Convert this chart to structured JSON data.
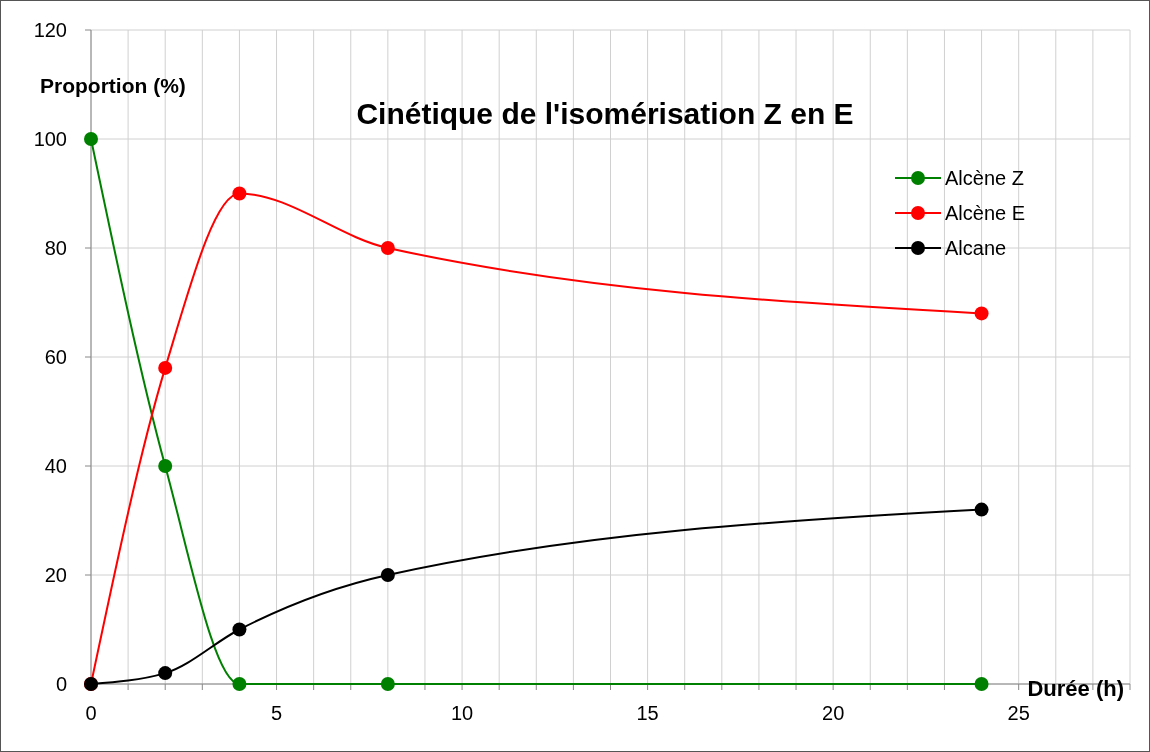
{
  "chart_data": {
    "type": "line",
    "title": "Cinétique de l'isomérisation Z en E",
    "xlabel": "Durée  (h)",
    "ylabel": "Proportion (%)",
    "x": [
      0,
      2,
      4,
      8,
      24
    ],
    "series": [
      {
        "name": "Alcène Z",
        "color": "#008000",
        "values": [
          100,
          40,
          0,
          0,
          0
        ]
      },
      {
        "name": "Alcène E",
        "color": "#ff0000",
        "values": [
          0,
          58,
          90,
          80,
          68
        ]
      },
      {
        "name": "Alcane",
        "color": "#000000",
        "values": [
          0,
          2,
          10,
          20,
          32
        ]
      }
    ],
    "xlim": [
      0,
      28
    ],
    "xticks": [
      0,
      {
        "value": 1,
        "label": null
      },
      {
        "value": 2,
        "label": null
      },
      {
        "value": 3,
        "label": null
      },
      {
        "value": 4,
        "label": null
      },
      5,
      {
        "value": 6,
        "label": null
      },
      {
        "value": 7,
        "label": null
      },
      {
        "value": 8,
        "label": null
      },
      {
        "value": 9,
        "label": null
      },
      10,
      {
        "value": 11,
        "label": null
      },
      {
        "value": 12,
        "label": null
      },
      {
        "value": 13,
        "label": null
      },
      {
        "value": 14,
        "label": null
      },
      15,
      {
        "value": 16,
        "label": null
      },
      {
        "value": 17,
        "label": null
      },
      {
        "value": 18,
        "label": null
      },
      {
        "value": 19,
        "label": null
      },
      20,
      {
        "value": 21,
        "label": null
      },
      {
        "value": 22,
        "label": null
      },
      {
        "value": 23,
        "label": null
      },
      {
        "value": 24,
        "label": null
      },
      25,
      {
        "value": 26,
        "label": null
      },
      {
        "value": 27,
        "label": null
      },
      {
        "value": 28,
        "label": null
      }
    ],
    "ylim": [
      0,
      120
    ],
    "yticks": [
      0,
      20,
      40,
      60,
      80,
      100,
      120
    ],
    "grid": true,
    "legend": "top right",
    "marker": "circle",
    "line_style": "solid"
  }
}
